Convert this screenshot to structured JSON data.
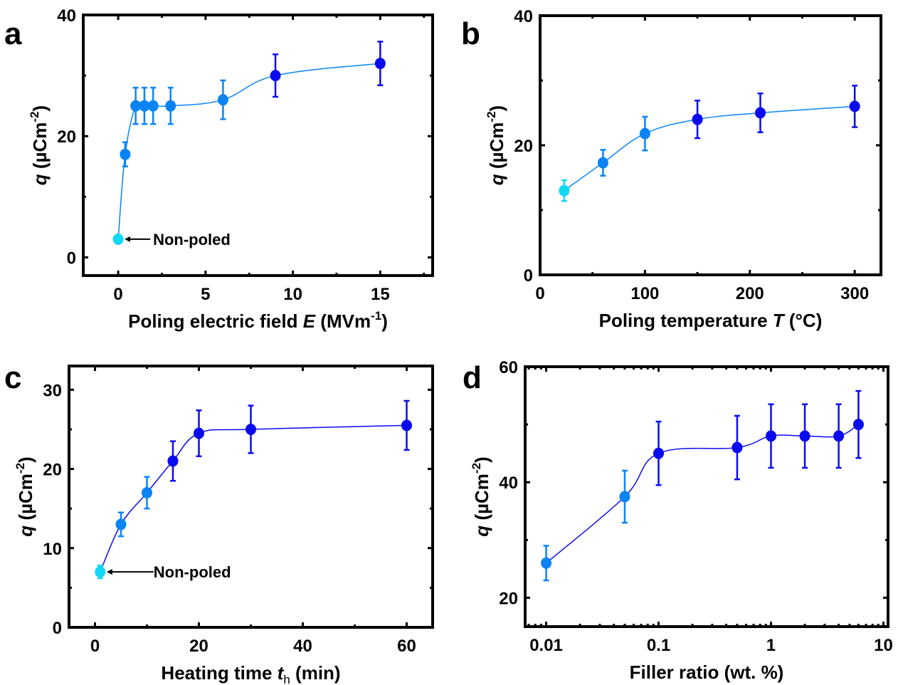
{
  "figure": {
    "colors": {
      "non_poled": "#11d8f5",
      "low": "#0a84f5",
      "high": "#0a0af0",
      "axis": "#000000"
    }
  },
  "chart_data": [
    {
      "panel": "a",
      "type": "scatter",
      "title": "",
      "xlabel": "Poling electric field E (MVm-1)",
      "xlabel_parts": {
        "pre": "Poling electric field ",
        "var": "E",
        "post": " (MVm",
        "sup": "-1",
        "close": ")"
      },
      "ylabel": "q (µCm-2)",
      "xscale": "linear",
      "xlim": [
        -2,
        18
      ],
      "ylim": [
        -3,
        40
      ],
      "xticks": [
        0,
        5,
        10,
        15
      ],
      "xtick_labels": [
        "0",
        "5",
        "10",
        "15"
      ],
      "xminor": [
        2.5,
        7.5,
        12.5,
        17.5
      ],
      "yticks": [
        0,
        20,
        40
      ],
      "ytick_labels": [
        "0",
        "20",
        "40"
      ],
      "yminor": [
        10,
        30
      ],
      "grid": false,
      "x": [
        0,
        0.4,
        1,
        1.5,
        2,
        3,
        6,
        9,
        15
      ],
      "y": [
        3,
        17,
        25,
        25,
        25,
        25,
        26,
        30,
        32
      ],
      "yerr": [
        0,
        2,
        3,
        3,
        3,
        3,
        3.2,
        3.5,
        3.6
      ],
      "point_color_class": [
        "non_poled",
        "low",
        "low",
        "low",
        "low",
        "low",
        "low",
        "high",
        "high"
      ],
      "line_color": "low",
      "annotation": {
        "text": "Non-poled",
        "point_index": 0
      }
    },
    {
      "panel": "b",
      "type": "scatter",
      "title": "",
      "xlabel": "Poling temperature T (°C)",
      "xlabel_parts": {
        "pre": "Poling temperature ",
        "var": "T",
        "post": " (°C)",
        "sup": "",
        "close": ""
      },
      "ylabel": "q (µCm-2)",
      "xscale": "linear",
      "xlim": [
        0,
        325
      ],
      "ylim": [
        0,
        40
      ],
      "xticks": [
        0,
        100,
        200,
        300
      ],
      "xtick_labels": [
        "0",
        "100",
        "200",
        "300"
      ],
      "xminor": [
        50,
        150,
        250
      ],
      "yticks": [
        0,
        20,
        40
      ],
      "ytick_labels": [
        "0",
        "20",
        "40"
      ],
      "yminor": [
        10,
        30
      ],
      "grid": false,
      "x": [
        23,
        60,
        100,
        150,
        210,
        300
      ],
      "y": [
        13,
        17.3,
        21.8,
        24,
        25,
        26
      ],
      "yerr": [
        1.6,
        2,
        2.6,
        2.9,
        3,
        3.2
      ],
      "point_color_class": [
        "non_poled",
        "low",
        "low",
        "high",
        "high",
        "high"
      ],
      "line_color": "low",
      "annotation": null
    },
    {
      "panel": "c",
      "type": "scatter",
      "title": "",
      "xlabel": "Heating time th (min)",
      "xlabel_parts": {
        "pre": "Heating time ",
        "var": "t",
        "sub": "h",
        "post": " (min)"
      },
      "ylabel": "q (µCm-2)",
      "xscale": "linear",
      "xlim": [
        -5,
        65
      ],
      "ylim": [
        0,
        33
      ],
      "xticks": [
        0,
        20,
        40,
        60
      ],
      "xtick_labels": [
        "0",
        "20",
        "40",
        "60"
      ],
      "xminor": [
        10,
        30,
        50
      ],
      "yticks": [
        0,
        10,
        20,
        30
      ],
      "ytick_labels": [
        "0",
        "10",
        "20",
        "30"
      ],
      "yminor": [
        5,
        15,
        25
      ],
      "grid": false,
      "x": [
        1,
        5,
        10,
        15,
        20,
        30,
        60
      ],
      "y": [
        7,
        13,
        17,
        21,
        24.5,
        25,
        25.5
      ],
      "yerr": [
        0.8,
        1.5,
        2,
        2.5,
        2.9,
        3,
        3.1
      ],
      "point_color_class": [
        "non_poled",
        "low",
        "low",
        "high",
        "high",
        "high",
        "high"
      ],
      "line_color": "high",
      "annotation": {
        "text": "Non-poled",
        "point_index": 0
      }
    },
    {
      "panel": "d",
      "type": "scatter",
      "title": "",
      "xlabel": "Filler ratio (wt. %)",
      "xlabel_parts": {
        "pre": "Filler ratio (wt. %)",
        "var": "",
        "post": "",
        "sup": "",
        "close": ""
      },
      "ylabel": "q (µCm-2)",
      "xscale": "log",
      "xlim": [
        0.0065,
        11
      ],
      "ylim": [
        15,
        60
      ],
      "xticks": [
        0.01,
        0.1,
        1,
        10
      ],
      "xtick_labels": [
        "0.01",
        "0.1",
        "1",
        "10"
      ],
      "yticks": [
        20,
        40,
        60
      ],
      "ytick_labels": [
        "20",
        "40",
        "60"
      ],
      "yminor": [
        30,
        50
      ],
      "grid": false,
      "x": [
        0.01,
        0.05,
        0.1,
        0.5,
        1,
        2,
        4,
        6
      ],
      "y": [
        26,
        37.5,
        45,
        46,
        48,
        48,
        48,
        50
      ],
      "yerr": [
        3,
        4.5,
        5.5,
        5.5,
        5.5,
        5.5,
        5.5,
        5.8
      ],
      "point_color_class": [
        "low",
        "low",
        "high",
        "high",
        "high",
        "high",
        "high",
        "high"
      ],
      "line_color": "high",
      "annotation": null
    }
  ]
}
